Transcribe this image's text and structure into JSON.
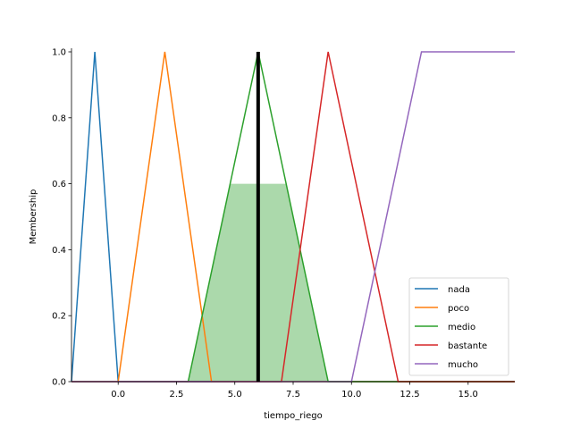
{
  "chart_data": {
    "type": "line",
    "xlabel": "tiempo_riego",
    "ylabel": "Membership",
    "xlim": [
      -2,
      17
    ],
    "ylim": [
      0,
      1
    ],
    "x_ticks": [
      0,
      2.5,
      5,
      7.5,
      10,
      12.5,
      15
    ],
    "x_tick_labels": [
      "0.0",
      "2.5",
      "5.0",
      "7.5",
      "10.0",
      "12.5",
      "15.0"
    ],
    "y_ticks": [
      0,
      0.2,
      0.4,
      0.6,
      0.8,
      1.0
    ],
    "y_tick_labels": [
      "0.0",
      "0.2",
      "0.4",
      "0.6",
      "0.8",
      "1.0"
    ],
    "grid": false,
    "legend_position": "lower-right",
    "series": [
      {
        "name": "nada",
        "color": "#1f77b4",
        "x": [
          -2,
          -1,
          0,
          17
        ],
        "y": [
          0,
          1,
          0,
          0
        ]
      },
      {
        "name": "poco",
        "color": "#ff7f0e",
        "x": [
          -2,
          0,
          2,
          4,
          17
        ],
        "y": [
          0,
          0,
          1,
          0,
          0
        ]
      },
      {
        "name": "medio",
        "color": "#2ca02c",
        "x": [
          -2,
          3,
          6,
          9,
          17
        ],
        "y": [
          0,
          0,
          1,
          0,
          0
        ]
      },
      {
        "name": "bastante",
        "color": "#d62728",
        "x": [
          -2,
          7,
          9,
          12,
          17
        ],
        "y": [
          0,
          0,
          1,
          0,
          0
        ]
      },
      {
        "name": "mucho",
        "color": "#9467bd",
        "x": [
          -2,
          10,
          13,
          17
        ],
        "y": [
          0,
          0,
          1,
          1
        ]
      }
    ],
    "activation_fill": {
      "color": "#2ca02c",
      "x": [
        3,
        4.8,
        7.2,
        9
      ],
      "y": [
        0,
        0.6,
        0.6,
        0
      ]
    },
    "output_line": {
      "x": 6,
      "color": "#000000"
    }
  }
}
